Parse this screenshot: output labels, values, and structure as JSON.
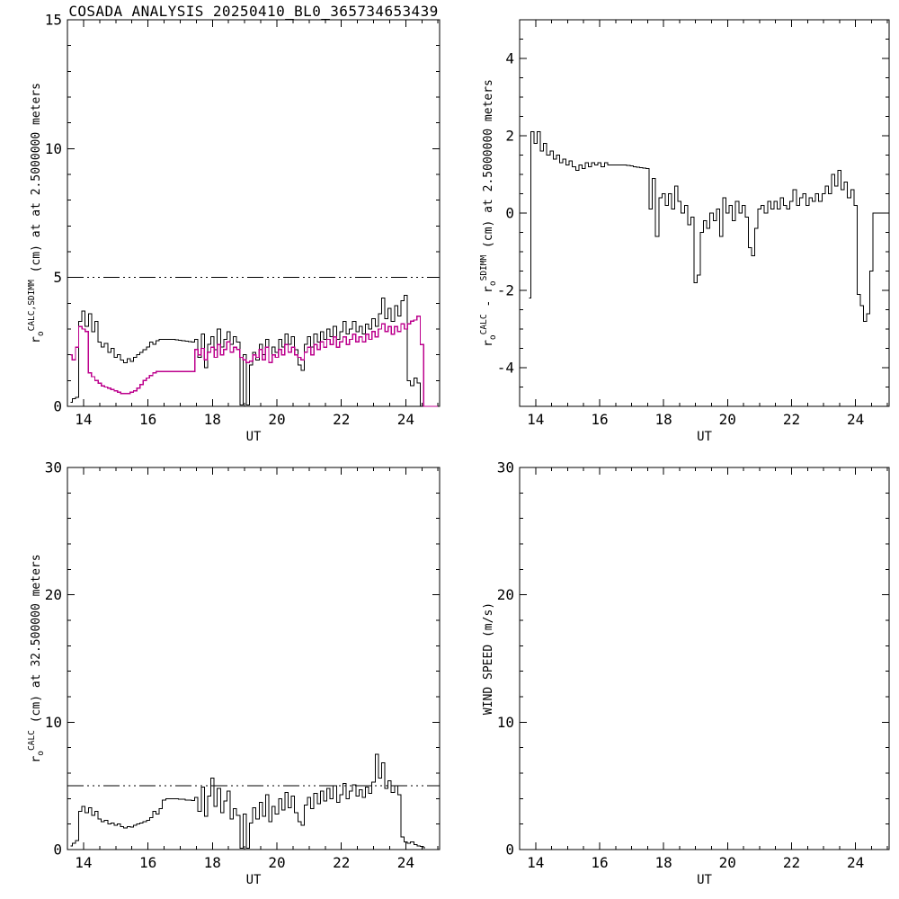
{
  "title": "COSADA ANALYSIS 20250410_BL0_365734653439",
  "colors": {
    "foreground": "#000000",
    "background": "#ffffff",
    "calc_series": "#000000",
    "sdimm_series": "#bc008c"
  },
  "chart_data": [
    {
      "id": "r0_at_2p5m",
      "type": "line",
      "position": "top-left",
      "title": "COSADA ANALYSIS 20250410_BL0_365734653439",
      "xlabel": "UT",
      "ylabel": "r_o^CALC,SDIMM (cm) at  at 2.5000000 meters",
      "ylabel_parts": [
        {
          "t": "r",
          "s": "n"
        },
        {
          "t": "o",
          "s": "sub"
        },
        {
          "t": "CALC,SDIMM",
          "s": "sup"
        },
        {
          "t": " (cm) at  at 2.5000000 meters",
          "s": "n"
        }
      ],
      "xlim": [
        13.5,
        25.05
      ],
      "ylim": [
        0,
        15
      ],
      "xticks": [
        14,
        16,
        18,
        20,
        22,
        24
      ],
      "yticks": [
        0,
        5,
        10,
        15
      ],
      "x_minor": 0.5,
      "y_minor": 1,
      "grid": false,
      "legend": "none",
      "ref_line_y": 5,
      "mode": "steps",
      "x_start": 13.6,
      "x_step": 0.1,
      "series": [
        {
          "name": "r0_calc",
          "color": "#000000",
          "values": [
            0.15,
            0.3,
            0.35,
            3.3,
            3.7,
            3.1,
            3.6,
            2.9,
            3.3,
            2.5,
            2.3,
            2.45,
            2.1,
            2.25,
            1.9,
            2.0,
            1.8,
            1.7,
            1.85,
            1.75,
            1.9,
            2.0,
            2.1,
            2.2,
            2.3,
            2.5,
            2.4,
            2.55,
            2.6,
            2.6,
            2.6,
            2.6,
            2.6,
            2.58,
            2.56,
            2.55,
            2.53,
            2.52,
            2.5,
            2.6,
            1.9,
            2.8,
            1.5,
            2.4,
            2.7,
            2.2,
            3.0,
            2.3,
            2.6,
            2.9,
            2.4,
            2.7,
            2.5,
            0.05,
            2.0,
            0.05,
            1.6,
            2.1,
            1.8,
            2.4,
            2.0,
            2.6,
            1.7,
            2.3,
            2.1,
            2.6,
            2.3,
            2.8,
            2.4,
            2.7,
            2.2,
            1.6,
            1.4,
            2.4,
            2.7,
            2.3,
            2.8,
            2.5,
            2.9,
            2.6,
            3.0,
            2.7,
            3.1,
            2.6,
            2.9,
            3.3,
            2.8,
            3.0,
            3.3,
            2.9,
            3.1,
            2.8,
            3.2,
            3.0,
            3.4,
            3.1,
            3.6,
            4.2,
            3.4,
            3.8,
            3.3,
            3.9,
            3.5,
            4.1,
            4.3,
            1.0,
            0.8,
            1.1,
            0.9,
            0.0,
            null,
            null,
            null,
            null,
            null
          ]
        },
        {
          "name": "r0_sdimm",
          "color": "#bc008c",
          "values": [
            2.0,
            1.8,
            2.3,
            3.1,
            3.0,
            2.9,
            1.3,
            1.15,
            1.0,
            0.9,
            0.8,
            0.75,
            0.7,
            0.65,
            0.6,
            0.55,
            0.5,
            0.5,
            0.5,
            0.55,
            0.6,
            0.7,
            0.85,
            1.0,
            1.1,
            1.2,
            1.3,
            1.35,
            1.35,
            1.35,
            1.35,
            1.35,
            1.35,
            1.35,
            1.35,
            1.35,
            1.35,
            1.35,
            1.35,
            2.2,
            2.0,
            2.25,
            1.8,
            2.1,
            2.3,
            1.9,
            2.4,
            2.0,
            2.2,
            2.5,
            2.1,
            2.3,
            2.2,
            1.9,
            1.8,
            1.7,
            1.75,
            2.0,
            1.9,
            2.2,
            1.8,
            2.3,
            1.7,
            2.0,
            1.9,
            2.2,
            2.0,
            2.4,
            2.1,
            2.3,
            2.0,
            1.9,
            1.8,
            2.1,
            2.3,
            2.0,
            2.4,
            2.2,
            2.5,
            2.3,
            2.6,
            2.4,
            2.7,
            2.3,
            2.5,
            2.7,
            2.4,
            2.6,
            2.8,
            2.5,
            2.7,
            2.5,
            2.8,
            2.6,
            2.9,
            2.7,
            3.0,
            3.2,
            2.9,
            3.1,
            2.8,
            3.1,
            2.9,
            3.2,
            3.0,
            3.2,
            3.3,
            3.35,
            3.5,
            2.4,
            0.0,
            0.0,
            0.0,
            0.0,
            0.0
          ]
        }
      ]
    },
    {
      "id": "r0_diff_at_2p5m",
      "type": "line",
      "position": "top-right",
      "title": "",
      "xlabel": "UT",
      "ylabel": "r_o^CALC - r_o^SDIMM (cm) at 2.5000000 meters",
      "ylabel_parts": [
        {
          "t": "r",
          "s": "n"
        },
        {
          "t": "o",
          "s": "sub"
        },
        {
          "t": "CALC",
          "s": "sup"
        },
        {
          "t": " - ",
          "s": "n"
        },
        {
          "t": "r",
          "s": "n"
        },
        {
          "t": "o",
          "s": "sub"
        },
        {
          "t": "SDIMM",
          "s": "sup"
        },
        {
          "t": " (cm) at 2.5000000 meters",
          "s": "n"
        }
      ],
      "xlim": [
        13.5,
        25.05
      ],
      "ylim": [
        -5,
        5
      ],
      "xticks": [
        14,
        16,
        18,
        20,
        22,
        24
      ],
      "yticks": [
        -4,
        -2,
        0,
        2,
        4
      ],
      "x_minor": 0.5,
      "y_minor": 0.5,
      "grid": false,
      "legend": "none",
      "ref_line_y": null,
      "mode": "steps",
      "x_start": 13.6,
      "x_step": 0.1,
      "series": [
        {
          "name": "r0_calc_minus_sdimm",
          "color": "#000000",
          "values": [
            null,
            null,
            -2.2,
            2.1,
            1.8,
            2.1,
            1.6,
            1.8,
            1.5,
            1.6,
            1.4,
            1.5,
            1.3,
            1.4,
            1.25,
            1.35,
            1.2,
            1.1,
            1.25,
            1.15,
            1.3,
            1.2,
            1.3,
            1.25,
            1.3,
            1.2,
            1.3,
            1.25,
            1.25,
            1.25,
            1.25,
            1.25,
            1.24,
            1.23,
            1.22,
            1.2,
            1.19,
            1.18,
            1.16,
            1.15,
            0.1,
            0.9,
            -0.6,
            0.4,
            0.5,
            0.2,
            0.5,
            0.1,
            0.7,
            0.3,
            0.0,
            0.2,
            -0.3,
            -0.1,
            -1.8,
            -1.6,
            -0.5,
            -0.2,
            -0.4,
            0.0,
            -0.2,
            0.1,
            -0.6,
            0.4,
            0.0,
            0.2,
            -0.2,
            0.3,
            0.0,
            0.2,
            -0.1,
            -0.9,
            -1.1,
            -0.4,
            0.1,
            0.2,
            0.0,
            0.3,
            0.1,
            0.3,
            0.1,
            0.4,
            0.2,
            0.1,
            0.3,
            0.6,
            0.2,
            0.4,
            0.5,
            0.2,
            0.4,
            0.3,
            0.5,
            0.3,
            0.5,
            0.7,
            0.5,
            1.0,
            0.7,
            1.1,
            0.6,
            0.8,
            0.4,
            0.6,
            0.2,
            -2.1,
            -2.4,
            -2.8,
            -2.6,
            -1.5,
            0.0,
            0.0,
            0.0,
            0.0,
            0.0
          ]
        }
      ]
    },
    {
      "id": "r0_at_32p5m",
      "type": "line",
      "position": "bottom-left",
      "title": "",
      "xlabel": "UT",
      "ylabel": "r_o^CALC (cm) at 32.500000 meters",
      "ylabel_parts": [
        {
          "t": "r",
          "s": "n"
        },
        {
          "t": "o",
          "s": "sub"
        },
        {
          "t": "CALC",
          "s": "sup"
        },
        {
          "t": " (cm) at 32.500000 meters",
          "s": "n"
        }
      ],
      "xlim": [
        13.5,
        25.05
      ],
      "ylim": [
        0,
        30
      ],
      "xticks": [
        14,
        16,
        18,
        20,
        22,
        24
      ],
      "yticks": [
        0,
        10,
        20,
        30
      ],
      "x_minor": 0.5,
      "y_minor": 2,
      "grid": false,
      "legend": "none",
      "ref_line_y": 5,
      "mode": "steps",
      "x_start": 13.6,
      "x_step": 0.1,
      "series": [
        {
          "name": "r0_calc_32p5",
          "color": "#000000",
          "values": [
            0.3,
            0.5,
            0.7,
            3.0,
            3.4,
            2.9,
            3.3,
            2.7,
            3.0,
            2.4,
            2.2,
            2.3,
            2.0,
            2.1,
            1.9,
            2.0,
            1.8,
            1.7,
            1.8,
            1.75,
            1.9,
            2.0,
            2.1,
            2.2,
            2.3,
            2.5,
            3.0,
            2.8,
            3.2,
            3.9,
            4.0,
            4.0,
            4.0,
            4.0,
            3.95,
            3.95,
            3.9,
            3.9,
            3.85,
            4.1,
            3.0,
            4.9,
            2.6,
            4.2,
            5.6,
            3.4,
            4.8,
            2.9,
            3.8,
            4.6,
            2.4,
            3.2,
            2.7,
            0.1,
            2.8,
            0.1,
            2.1,
            3.3,
            2.4,
            3.7,
            2.6,
            4.3,
            2.2,
            3.4,
            2.8,
            4.0,
            3.1,
            4.5,
            3.3,
            4.2,
            2.9,
            2.2,
            1.9,
            3.5,
            4.1,
            3.2,
            4.4,
            3.6,
            4.6,
            3.8,
            4.8,
            4.0,
            5.0,
            3.7,
            4.3,
            5.2,
            4.0,
            4.6,
            5.1,
            4.2,
            4.7,
            4.1,
            4.9,
            4.4,
            5.3,
            7.5,
            5.6,
            6.8,
            4.8,
            5.4,
            4.5,
            5.0,
            4.3,
            1.0,
            0.6,
            0.5,
            0.6,
            0.4,
            0.3,
            0.25,
            0.15,
            null,
            null,
            null,
            null
          ]
        }
      ]
    },
    {
      "id": "wind_speed",
      "type": "line",
      "position": "bottom-right",
      "title": "",
      "xlabel": "UT",
      "ylabel": "WIND SPEED (m/s)",
      "ylabel_parts": [
        {
          "t": "WIND SPEED (m/s)",
          "s": "n"
        }
      ],
      "xlim": [
        13.5,
        25.05
      ],
      "ylim": [
        0,
        30
      ],
      "xticks": [
        14,
        16,
        18,
        20,
        22,
        24
      ],
      "yticks": [
        0,
        10,
        20,
        30
      ],
      "x_minor": 0.5,
      "y_minor": 2,
      "grid": false,
      "legend": "none",
      "ref_line_y": null,
      "mode": "steps",
      "x_start": 13.6,
      "x_step": 0.1,
      "series": []
    }
  ]
}
